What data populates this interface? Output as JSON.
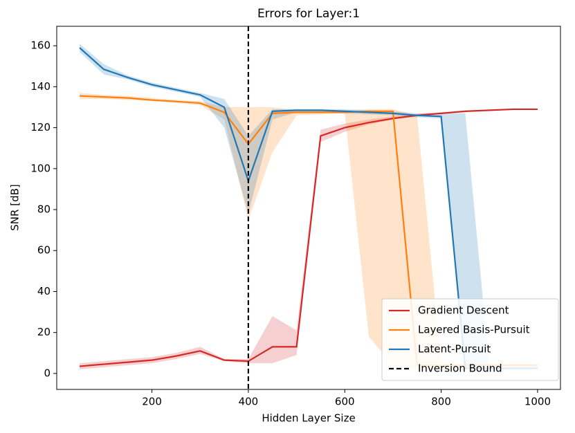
{
  "chart_data": {
    "type": "line",
    "title": "Errors for Layer:1",
    "x_label": "Hidden Layer Size",
    "y_label": "SNR [dB]",
    "x": [
      50,
      100,
      150,
      200,
      250,
      300,
      350,
      400,
      450,
      500,
      550,
      600,
      650,
      700,
      750,
      800,
      850,
      900,
      950,
      1000
    ],
    "xlim": [
      2.5,
      1047.5
    ],
    "ylim": [
      -7.8,
      169.5
    ],
    "xticks": [
      200,
      400,
      600,
      800,
      1000
    ],
    "yticks": [
      0,
      20,
      40,
      60,
      80,
      100,
      120,
      140,
      160
    ],
    "legend": "lower right",
    "vline": {
      "x": 400,
      "name": "Inversion Bound",
      "color": "#000000"
    },
    "series": [
      {
        "name": "Gradient Descent",
        "color": "#d62728",
        "values": [
          3.5,
          4.5,
          5.5,
          6.5,
          8.5,
          11,
          6.5,
          6,
          13,
          13,
          116,
          120,
          122.5,
          124.5,
          126,
          127,
          128,
          128.5,
          129,
          129
        ],
        "lower": [
          2,
          3,
          4,
          5,
          7,
          9.5,
          6,
          5,
          5,
          9,
          113,
          118,
          121.5,
          124,
          125.5,
          126.8,
          127.8,
          128.3,
          128.8,
          128.8
        ],
        "upper": [
          5,
          6,
          7,
          8,
          10,
          13,
          7,
          7,
          28,
          21,
          119,
          122,
          124,
          125.5,
          126.8,
          127.5,
          128.3,
          128.8,
          129.2,
          129.3
        ]
      },
      {
        "name": "Layered Basis-Pursuit",
        "color": "#ff7f0e",
        "values": [
          135.5,
          135,
          134.5,
          133.5,
          132.8,
          132,
          127.5,
          112,
          127,
          127.5,
          127.5,
          127.5,
          128,
          128,
          4,
          4,
          4,
          4,
          4,
          4
        ],
        "lower": [
          134,
          134,
          133.5,
          133,
          132,
          131,
          124,
          75,
          108,
          126,
          126.5,
          127,
          18,
          4,
          2,
          3,
          3,
          3,
          3,
          3
        ],
        "upper": [
          137,
          136,
          135.5,
          134.5,
          133.5,
          133,
          130,
          130,
          130,
          128.5,
          128.5,
          128.5,
          129,
          129,
          126,
          5,
          5,
          5,
          5,
          5
        ]
      },
      {
        "name": "Latent-Pursuit",
        "color": "#1f77b4",
        "values": [
          159,
          148.5,
          144.5,
          141,
          138.5,
          136,
          130,
          94,
          128,
          128.5,
          128.5,
          128,
          127.5,
          127,
          126,
          125.5,
          2.5,
          2.5,
          2.5,
          2.5
        ],
        "lower": [
          157,
          146,
          143.5,
          140,
          137.5,
          135,
          120,
          78,
          124,
          127.5,
          127.5,
          127,
          126.5,
          126,
          125,
          124.5,
          2,
          2,
          2,
          2
        ],
        "upper": [
          161,
          151,
          145.5,
          142,
          139.5,
          137,
          134,
          116,
          129,
          129,
          129,
          129,
          128.5,
          128,
          127,
          127,
          127,
          3,
          3,
          3
        ]
      }
    ]
  }
}
